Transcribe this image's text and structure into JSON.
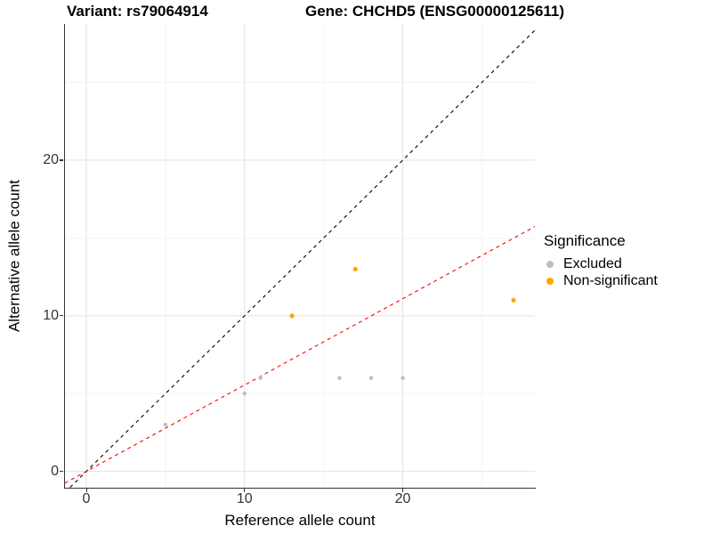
{
  "titles": {
    "left": "Variant: rs79064914",
    "right": "Gene: CHCHD5 (ENSG00000125611)"
  },
  "legend": {
    "title": "Significance",
    "items": [
      {
        "label": "Excluded",
        "color": "#BEBEBE"
      },
      {
        "label": "Non-significant",
        "color": "#FFA500"
      }
    ]
  },
  "chart_data": {
    "type": "scatter",
    "title_left": "Variant: rs79064914",
    "title_right": "Gene: CHCHD5 (ENSG00000125611)",
    "xlabel": "Reference allele count",
    "ylabel": "Alternative allele count",
    "xlim": [
      -1.35,
      28.35
    ],
    "ylim": [
      -1.05,
      28.75
    ],
    "x_ticks": [
      0,
      10,
      20
    ],
    "y_ticks": [
      0,
      10,
      20
    ],
    "minor_grid_x": [
      5,
      15,
      25
    ],
    "minor_grid_y": [
      5,
      15,
      25
    ],
    "grid": true,
    "legend_position": "right",
    "legend_title": "Significance",
    "series": [
      {
        "name": "Excluded",
        "color": "#BEBEBE",
        "marker_radius": 2.2,
        "points": [
          [
            5,
            3
          ],
          [
            10,
            5
          ],
          [
            11,
            6
          ],
          [
            16,
            6
          ],
          [
            18,
            6
          ],
          [
            20,
            6
          ]
        ]
      },
      {
        "name": "Non-significant",
        "color": "#FFA500",
        "marker_radius": 2.6,
        "points": [
          [
            13,
            10
          ],
          [
            17,
            13
          ],
          [
            27,
            11
          ]
        ]
      }
    ],
    "ablines": [
      {
        "name": "identity-line",
        "slope": 1,
        "intercept": 0,
        "color": "#000000",
        "dash": "4,4",
        "width": 1.1
      },
      {
        "name": "fit-line",
        "slope": 0.555,
        "intercept": 0,
        "color": "#FF0000",
        "dash": "4,4",
        "width": 1.1
      }
    ],
    "colors": {
      "major_grid": "#E4E4E4",
      "minor_grid": "#F2F2F2",
      "axis": "#333333"
    }
  }
}
